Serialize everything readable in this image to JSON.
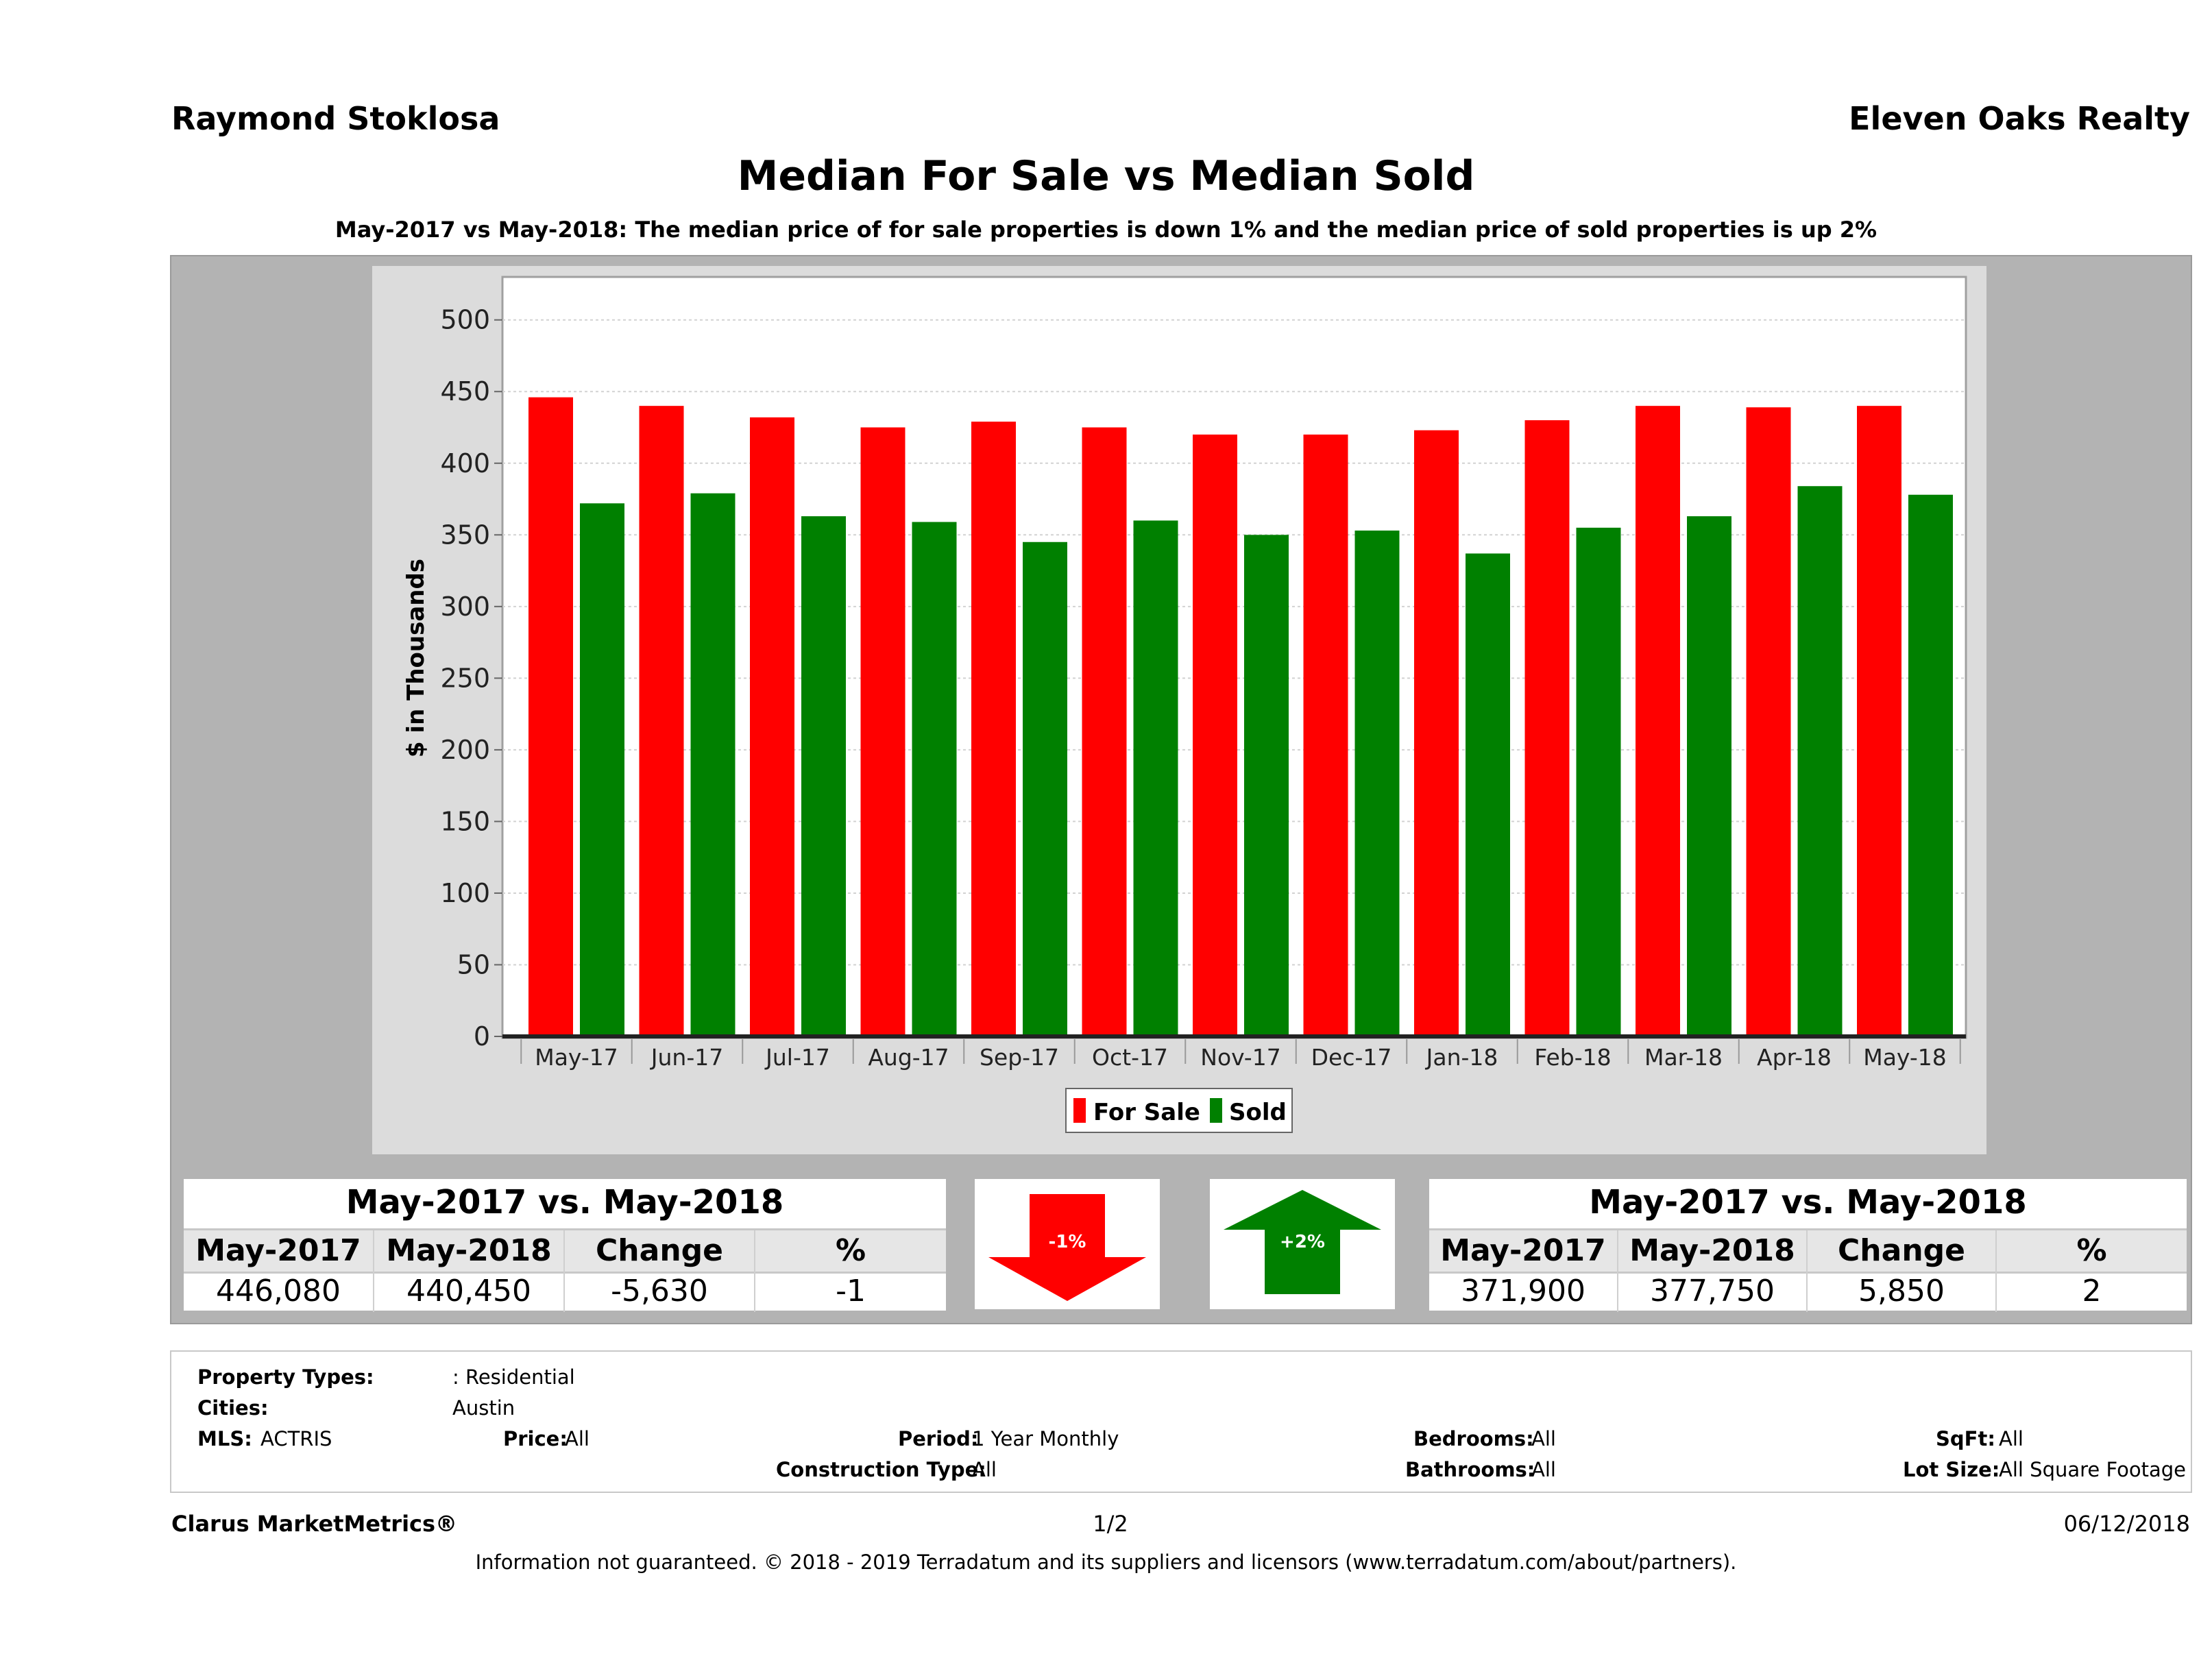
{
  "header": {
    "agent": "Raymond Stoklosa",
    "company": "Eleven Oaks Realty"
  },
  "title": "Median For Sale vs Median Sold",
  "subtitle": "May-2017 vs May-2018: The median price of for sale properties is down 1% and the median price of sold properties is up 2%",
  "chart_data": {
    "type": "bar",
    "categories": [
      "May-17",
      "Jun-17",
      "Jul-17",
      "Aug-17",
      "Sep-17",
      "Oct-17",
      "Nov-17",
      "Dec-17",
      "Jan-18",
      "Feb-18",
      "Mar-18",
      "Apr-18",
      "May-18"
    ],
    "series": [
      {
        "name": "For Sale",
        "color": "#ff0000",
        "values": [
          446,
          440,
          432,
          425,
          429,
          425,
          420,
          420,
          423,
          430,
          440,
          439,
          440
        ]
      },
      {
        "name": "Sold",
        "color": "#008000",
        "values": [
          372,
          379,
          363,
          359,
          345,
          360,
          350,
          353,
          337,
          355,
          363,
          384,
          378
        ]
      }
    ],
    "ylabel": "$ in Thousands",
    "ylim": [
      0,
      530
    ],
    "yticks": [
      0,
      50,
      100,
      150,
      200,
      250,
      300,
      350,
      400,
      450,
      500
    ],
    "grid": true,
    "legend_position": "bottom"
  },
  "for_sale_summary": {
    "title": "May-2017 vs. May-2018",
    "headers": [
      "May-2017",
      "May-2018",
      "Change",
      "%"
    ],
    "values": [
      "446,080",
      "440,450",
      "-5,630",
      "-1"
    ]
  },
  "sold_summary": {
    "title": "May-2017 vs. May-2018",
    "headers": [
      "May-2017",
      "May-2018",
      "Change",
      "%"
    ],
    "values": [
      "371,900",
      "377,750",
      "5,850",
      "2"
    ]
  },
  "arrows": {
    "down_label": "-1%",
    "down_color": "#ff0000",
    "up_label": "+2%",
    "up_color": "#008000"
  },
  "info": {
    "property_types_label": "Property Types:",
    "property_types_value": ": Residential",
    "cities_label": "Cities:",
    "cities_value": "Austin",
    "mls_label": "MLS:",
    "mls_value": "ACTRIS",
    "price_label": "Price:",
    "price_value": "All",
    "period_label": "Period:",
    "period_value": "1 Year Monthly",
    "construction_label": "Construction Type:",
    "construction_value": "All",
    "bedrooms_label": "Bedrooms:",
    "bedrooms_value": "All",
    "bathrooms_label": "Bathrooms:",
    "bathrooms_value": "All",
    "sqft_label": "SqFt:",
    "sqft_value": "All",
    "lotsize_label": "Lot Size:",
    "lotsize_value": "All Square Footage"
  },
  "footer": {
    "brand": "Clarus MarketMetrics®",
    "page": "1/2",
    "date": "06/12/2018",
    "disclaimer": "Information not guaranteed. © 2018 - 2019 Terradatum and its suppliers and licensors (www.terradatum.com/about/partners)."
  }
}
